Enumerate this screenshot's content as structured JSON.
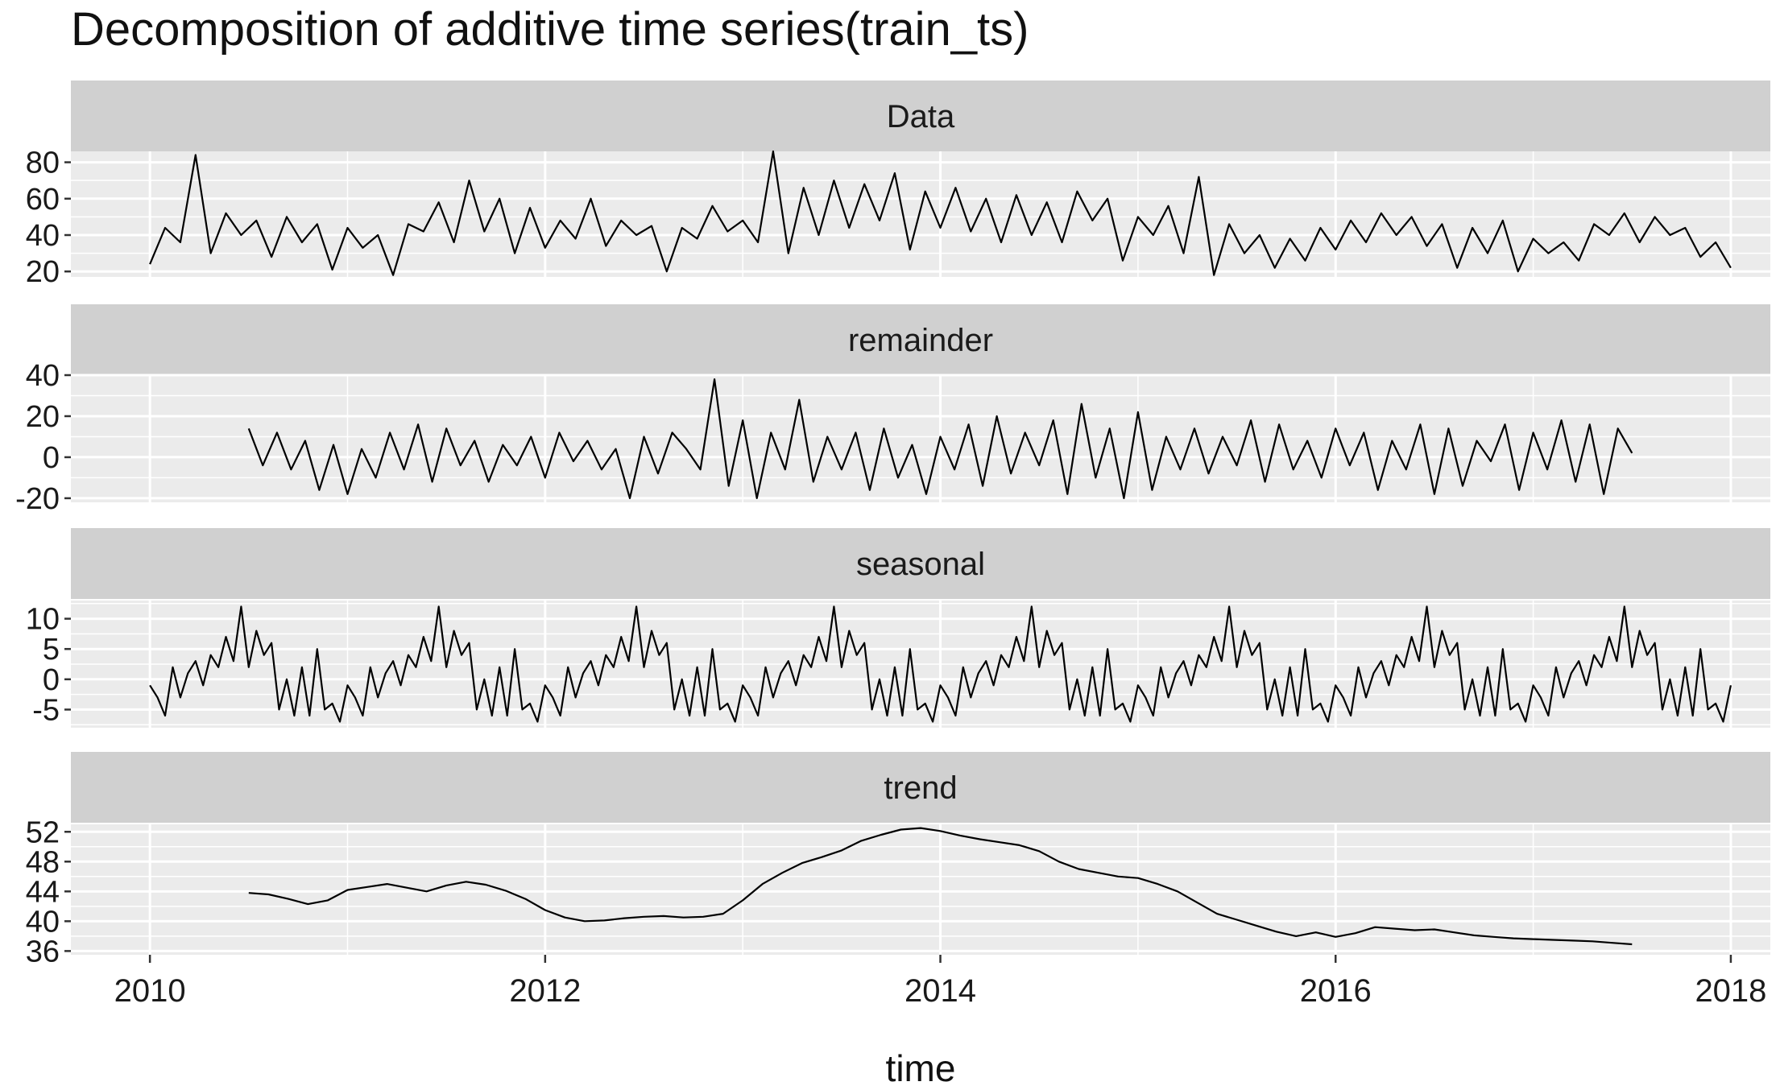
{
  "chart_data": {
    "type": "line",
    "title": "Decomposition of additive time series(train_ts)",
    "xlabel": "time",
    "xlim": [
      2009.6,
      2018.2
    ],
    "x_ticks": [
      2010,
      2012,
      2014,
      2016,
      2018
    ],
    "grid": true,
    "panels": [
      {
        "name": "Data",
        "ylim": [
          17,
          86
        ],
        "y_ticks": [
          20,
          40,
          60,
          80
        ],
        "y_tick_labels": [
          "20",
          "40",
          "60",
          "80"
        ],
        "series": {
          "x": [
            2010.0,
            2010.0769,
            2010.1538,
            2010.2308,
            2010.3077,
            2010.3846,
            2010.4615,
            2010.5385,
            2010.6154,
            2010.6923,
            2010.7692,
            2010.8462,
            2010.9231,
            2011.0,
            2011.0769,
            2011.1538,
            2011.2308,
            2011.3077,
            2011.3846,
            2011.4615,
            2011.5385,
            2011.6154,
            2011.6923,
            2011.7692,
            2011.8462,
            2011.9231,
            2012.0,
            2012.0769,
            2012.1538,
            2012.2308,
            2012.3077,
            2012.3846,
            2012.4615,
            2012.5385,
            2012.6154,
            2012.6923,
            2012.7692,
            2012.8462,
            2012.9231,
            2013.0,
            2013.0769,
            2013.1538,
            2013.2308,
            2013.3077,
            2013.3846,
            2013.4615,
            2013.5385,
            2013.6154,
            2013.6923,
            2013.7692,
            2013.8462,
            2013.9231,
            2014.0,
            2014.0769,
            2014.1538,
            2014.2308,
            2014.3077,
            2014.3846,
            2014.4615,
            2014.5385,
            2014.6154,
            2014.6923,
            2014.7692,
            2014.8462,
            2014.9231,
            2015.0,
            2015.0769,
            2015.1538,
            2015.2308,
            2015.3077,
            2015.3846,
            2015.4615,
            2015.5385,
            2015.6154,
            2015.6923,
            2015.7692,
            2015.8462,
            2015.9231,
            2016.0,
            2016.0769,
            2016.1538,
            2016.2308,
            2016.3077,
            2016.3846,
            2016.4615,
            2016.5385,
            2016.6154,
            2016.6923,
            2016.7692,
            2016.8462,
            2016.9231,
            2017.0,
            2017.0769,
            2017.1538,
            2017.2308,
            2017.3077,
            2017.3846,
            2017.4615,
            2017.5385,
            2017.6154,
            2017.6923,
            2017.7692,
            2017.8462,
            2017.9231,
            2018.0
          ],
          "y": [
            24,
            44,
            36,
            84,
            30,
            52,
            40,
            48,
            28,
            50,
            36,
            46,
            21,
            44,
            33,
            40,
            18,
            46,
            42,
            58,
            36,
            70,
            42,
            60,
            30,
            55,
            33,
            48,
            38,
            60,
            34,
            48,
            40,
            45,
            20,
            44,
            38,
            56,
            42,
            48,
            36,
            86,
            30,
            66,
            40,
            70,
            44,
            68,
            48,
            74,
            32,
            64,
            44,
            66,
            42,
            60,
            36,
            62,
            40,
            58,
            36,
            64,
            48,
            60,
            26,
            50,
            40,
            56,
            30,
            72,
            18,
            46,
            30,
            40,
            22,
            38,
            26,
            44,
            32,
            48,
            36,
            52,
            40,
            50,
            34,
            46,
            22,
            44,
            30,
            48,
            20,
            38,
            30,
            36,
            26,
            46,
            40,
            52,
            36,
            50,
            40,
            44,
            28,
            36,
            22
          ]
        }
      },
      {
        "name": "remainder",
        "ylim": [
          -22,
          40
        ],
        "y_ticks": [
          -20,
          0,
          20,
          40
        ],
        "y_tick_labels": [
          "-20",
          "0",
          "20",
          "40"
        ],
        "series": {
          "x": [
            2010.5,
            2010.5714,
            2010.6429,
            2010.7143,
            2010.7857,
            2010.8571,
            2010.9286,
            2011.0,
            2011.0714,
            2011.1429,
            2011.2143,
            2011.2857,
            2011.3571,
            2011.4286,
            2011.5,
            2011.5714,
            2011.6429,
            2011.7143,
            2011.7857,
            2011.8571,
            2011.9286,
            2012.0,
            2012.0714,
            2012.1429,
            2012.2143,
            2012.2857,
            2012.3571,
            2012.4286,
            2012.5,
            2012.5714,
            2012.6429,
            2012.7143,
            2012.7857,
            2012.8571,
            2012.9286,
            2013.0,
            2013.0714,
            2013.1429,
            2013.2143,
            2013.2857,
            2013.3571,
            2013.4286,
            2013.5,
            2013.5714,
            2013.6429,
            2013.7143,
            2013.7857,
            2013.8571,
            2013.9286,
            2014.0,
            2014.0714,
            2014.1429,
            2014.2143,
            2014.2857,
            2014.3571,
            2014.4286,
            2014.5,
            2014.5714,
            2014.6429,
            2014.7143,
            2014.7857,
            2014.8571,
            2014.9286,
            2015.0,
            2015.0714,
            2015.1429,
            2015.2143,
            2015.2857,
            2015.3571,
            2015.4286,
            2015.5,
            2015.5714,
            2015.6429,
            2015.7143,
            2015.7857,
            2015.8571,
            2015.9286,
            2016.0,
            2016.0714,
            2016.1429,
            2016.2143,
            2016.2857,
            2016.3571,
            2016.4286,
            2016.5,
            2016.5714,
            2016.6429,
            2016.7143,
            2016.7857,
            2016.8571,
            2016.9286,
            2017.0,
            2017.0714,
            2017.1429,
            2017.2143,
            2017.2857,
            2017.3571,
            2017.4286,
            2017.5
          ],
          "y": [
            14,
            -4,
            12,
            -6,
            8,
            -16,
            6,
            -18,
            4,
            -10,
            12,
            -6,
            16,
            -12,
            14,
            -4,
            8,
            -12,
            6,
            -4,
            10,
            -10,
            12,
            -2,
            8,
            -6,
            4,
            -20,
            10,
            -8,
            12,
            4,
            -6,
            38,
            -14,
            18,
            -20,
            12,
            -6,
            28,
            -12,
            10,
            -6,
            12,
            -16,
            14,
            -10,
            6,
            -18,
            10,
            -6,
            16,
            -14,
            20,
            -8,
            12,
            -4,
            18,
            -18,
            26,
            -10,
            14,
            -20,
            22,
            -16,
            10,
            -6,
            14,
            -8,
            10,
            -4,
            18,
            -12,
            16,
            -6,
            8,
            -10,
            14,
            -4,
            12,
            -16,
            8,
            -6,
            16,
            -18,
            14,
            -14,
            8,
            -2,
            16,
            -16,
            12,
            -6,
            18,
            -12,
            16,
            -18,
            14,
            2
          ]
        }
      },
      {
        "name": "seasonal",
        "ylim": [
          -8,
          13
        ],
        "y_ticks": [
          -5,
          0,
          5,
          10
        ],
        "y_tick_labels": [
          "-5",
          "0",
          "5",
          "10"
        ],
        "series": {
          "x": [
            2010.0,
            2010.0385,
            2010.0769,
            2010.1154,
            2010.1538,
            2010.1923,
            2010.2308,
            2010.2692,
            2010.3077,
            2010.3462,
            2010.3846,
            2010.4231,
            2010.4615,
            2010.5,
            2010.5385,
            2010.5769,
            2010.6154,
            2010.6538,
            2010.6923,
            2010.7308,
            2010.7692,
            2010.8077,
            2010.8462,
            2010.8846,
            2010.9231,
            2010.9615
          ],
          "y": [
            -1,
            -3,
            -6,
            2,
            -3,
            1,
            3,
            -1,
            4,
            2,
            7,
            3,
            12,
            2,
            8,
            4,
            6,
            -5,
            0,
            -6,
            2,
            -6,
            5,
            -5,
            -4,
            -7
          ],
          "period_years": 1
        }
      },
      {
        "name": "trend",
        "ylim": [
          35.5,
          53
        ],
        "y_ticks": [
          36,
          40,
          44,
          48,
          52
        ],
        "y_tick_labels": [
          "36",
          "40",
          "44",
          "48",
          "52"
        ],
        "series": {
          "x": [
            2010.5,
            2010.6,
            2010.7,
            2010.8,
            2010.9,
            2011.0,
            2011.1,
            2011.2,
            2011.3,
            2011.4,
            2011.5,
            2011.6,
            2011.7,
            2011.8,
            2011.9,
            2012.0,
            2012.1,
            2012.2,
            2012.3,
            2012.4,
            2012.5,
            2012.6,
            2012.7,
            2012.8,
            2012.9,
            2013.0,
            2013.1,
            2013.2,
            2013.3,
            2013.4,
            2013.5,
            2013.6,
            2013.7,
            2013.8,
            2013.9,
            2014.0,
            2014.1,
            2014.2,
            2014.3,
            2014.4,
            2014.5,
            2014.6,
            2014.7,
            2014.8,
            2014.9,
            2015.0,
            2015.1,
            2015.2,
            2015.3,
            2015.4,
            2015.5,
            2015.6,
            2015.7,
            2015.8,
            2015.9,
            2016.0,
            2016.1,
            2016.2,
            2016.3,
            2016.4,
            2016.5,
            2016.6,
            2016.7,
            2016.8,
            2016.9,
            2017.0,
            2017.1,
            2017.2,
            2017.3,
            2017.4,
            2017.5
          ],
          "y": [
            43.8,
            43.6,
            43.0,
            42.3,
            42.8,
            44.2,
            44.6,
            45.0,
            44.5,
            44.0,
            44.8,
            45.3,
            44.9,
            44.1,
            43.0,
            41.5,
            40.5,
            40.0,
            40.1,
            40.4,
            40.6,
            40.7,
            40.5,
            40.6,
            41.0,
            42.8,
            45.0,
            46.5,
            47.8,
            48.6,
            49.5,
            50.8,
            51.6,
            52.3,
            52.5,
            52.1,
            51.5,
            51.0,
            50.6,
            50.2,
            49.4,
            48.0,
            47.0,
            46.5,
            46.0,
            45.8,
            45.0,
            44.0,
            42.5,
            41.0,
            40.2,
            39.4,
            38.6,
            38.0,
            38.5,
            37.9,
            38.4,
            39.2,
            39.0,
            38.8,
            38.9,
            38.5,
            38.1,
            37.9,
            37.7,
            37.6,
            37.5,
            37.4,
            37.3,
            37.1,
            36.9
          ]
        }
      }
    ]
  }
}
